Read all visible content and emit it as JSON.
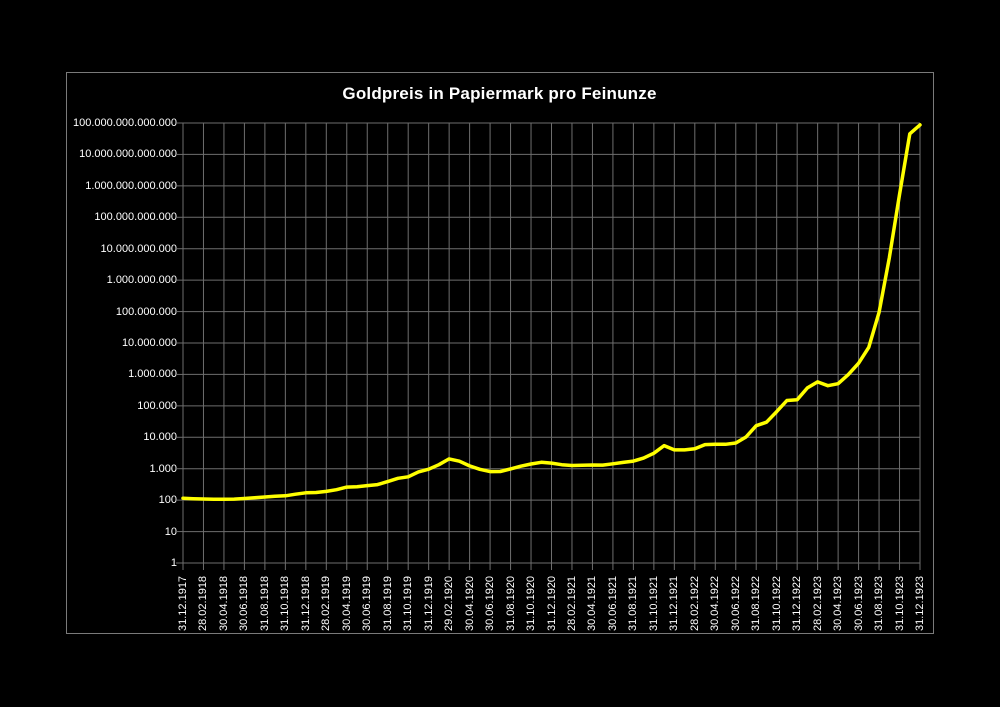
{
  "title": "Goldpreis in Papiermark pro Feinunze",
  "colors": {
    "background": "#000000",
    "text": "#ffffff",
    "gridline": "#6e6e6e",
    "frame": "#7a7a7a",
    "series_line": "#ffff00"
  },
  "chart_data": {
    "type": "line",
    "title": "Goldpreis in Papiermark pro Feinunze",
    "xlabel": "",
    "ylabel": "",
    "y_scale": "log",
    "y_range": [
      1,
      100000000000000
    ],
    "grid": "on",
    "legend": "none",
    "y_tick_labels": [
      "100.000.000.000.000",
      "10.000.000.000.000",
      "1.000.000.000.000",
      "100.000.000.000",
      "10.000.000.000",
      "1.000.000.000",
      "100.000.000",
      "10.000.000",
      "1.000.000",
      "100.000",
      "10.000",
      "1.000",
      "100",
      "10",
      "1"
    ],
    "x_tick_labels": [
      "31.12.1917",
      "28.02.1918",
      "30.04.1918",
      "30.06.1918",
      "31.08.1918",
      "31.10.1918",
      "31.12.1918",
      "28.02.1919",
      "30.04.1919",
      "30.06.1919",
      "31.08.1919",
      "31.10.1919",
      "31.12.1919",
      "29.02.1920",
      "30.04.1920",
      "30.06.1920",
      "31.08.1920",
      "31.10.1920",
      "31.12.1920",
      "28.02.1921",
      "30.04.1921",
      "30.06.1921",
      "31.08.1921",
      "31.10.1921",
      "31.12.1921",
      "28.02.1922",
      "30.04.1922",
      "30.06.1922",
      "31.08.1922",
      "31.10.1922",
      "31.12.1922",
      "28.02.1923",
      "30.04.1923",
      "30.06.1923",
      "31.08.1923",
      "31.10.1923",
      "31.12.1923"
    ],
    "series": [
      {
        "name": "Goldpreis in Papiermark pro Feinunze",
        "color": "#ffff00",
        "dates": [
          "31.12.1917",
          "31.01.1918",
          "28.02.1918",
          "31.03.1918",
          "30.04.1918",
          "31.05.1918",
          "30.06.1918",
          "31.07.1918",
          "31.08.1918",
          "30.09.1918",
          "31.10.1918",
          "30.11.1918",
          "31.12.1918",
          "31.01.1919",
          "28.02.1919",
          "31.03.1919",
          "30.04.1919",
          "31.05.1919",
          "30.06.1919",
          "31.07.1919",
          "31.08.1919",
          "30.09.1919",
          "31.10.1919",
          "30.11.1919",
          "31.12.1919",
          "31.01.1920",
          "29.02.1920",
          "31.03.1920",
          "30.04.1920",
          "31.05.1920",
          "30.06.1920",
          "31.07.1920",
          "31.08.1920",
          "30.09.1920",
          "31.10.1920",
          "30.11.1920",
          "31.12.1920",
          "31.01.1921",
          "28.02.1921",
          "31.03.1921",
          "30.04.1921",
          "31.05.1921",
          "30.06.1921",
          "31.07.1921",
          "31.08.1921",
          "30.09.1921",
          "31.10.1921",
          "30.11.1921",
          "31.12.1921",
          "31.01.1922",
          "28.02.1922",
          "31.03.1922",
          "30.04.1922",
          "31.05.1922",
          "30.06.1922",
          "31.07.1922",
          "31.08.1922",
          "30.09.1922",
          "31.10.1922",
          "30.11.1922",
          "31.12.1922",
          "31.01.1923",
          "28.02.1923",
          "31.03.1923",
          "30.04.1923",
          "31.05.1923",
          "30.06.1923",
          "31.07.1923",
          "31.08.1923",
          "30.09.1923",
          "31.10.1923",
          "30.11.1923",
          "31.12.1923"
        ],
        "values": [
          115,
          111,
          109,
          106,
          106,
          108,
          113,
          120,
          126,
          133,
          137,
          155,
          171,
          175,
          190,
          215,
          260,
          266,
          290,
          312,
          390,
          497,
          555,
          790,
          967,
          1340,
          2050,
          1730,
          1230,
          960,
          810,
          815,
          985,
          1200,
          1410,
          1600,
          1510,
          1340,
          1270,
          1290,
          1310,
          1300,
          1434,
          1585,
          1743,
          2170,
          3105,
          5440,
          3970,
          3965,
          4300,
          5870,
          6015,
          6000,
          6560,
          10200,
          23450,
          30300,
          65750,
          148500,
          156900,
          372000,
          577000,
          438000,
          506000,
          985000,
          2270000,
          7300000,
          95500000,
          5100000000,
          522000000000,
          45340000000000,
          86814000000000
        ]
      }
    ]
  }
}
